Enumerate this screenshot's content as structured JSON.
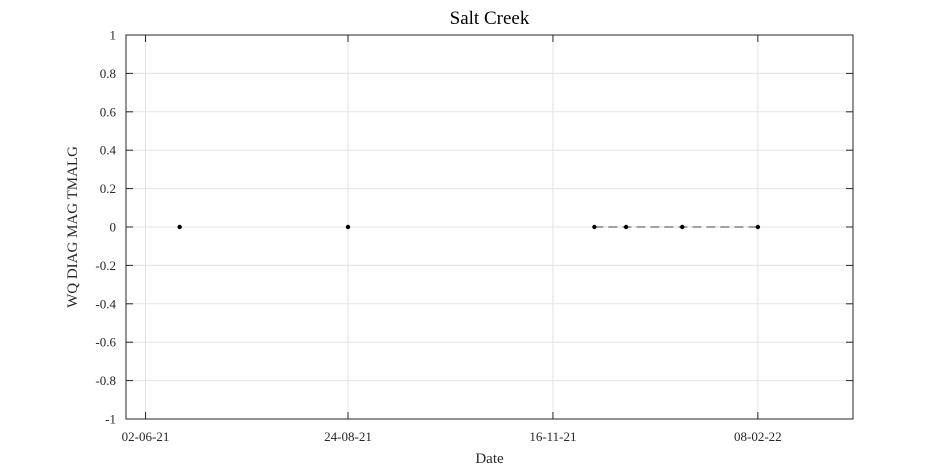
{
  "chart_data": {
    "type": "scatter",
    "title": "Salt Creek",
    "xlabel": "Date",
    "ylabel": "WQ DIAG MAG TMALG",
    "x_ticks": [
      "02-06-21",
      "24-08-21",
      "16-11-21",
      "08-02-22"
    ],
    "x_tick_dates": [
      "2021-06-02",
      "2021-08-24",
      "2021-11-16",
      "2022-02-08"
    ],
    "xlim": [
      "2021-05-25",
      "2022-03-19"
    ],
    "y_ticks": [
      "1",
      "0.8",
      "0.6",
      "0.4",
      "0.2",
      "0",
      "-0.2",
      "-0.4",
      "-0.6",
      "-0.8",
      "-1"
    ],
    "ylim": [
      -1,
      1
    ],
    "grid": true,
    "series": [
      {
        "points": [
          {
            "x": "2021-06-16",
            "y": 0
          },
          {
            "x": "2021-08-24",
            "y": 0
          },
          {
            "x": "2021-12-03",
            "y": 0
          },
          {
            "x": "2021-12-16",
            "y": 0
          },
          {
            "x": "2022-01-08",
            "y": 0
          },
          {
            "x": "2022-02-08",
            "y": 0
          }
        ],
        "dashed_segments": [
          [
            2,
            5
          ]
        ],
        "color": "#000000"
      }
    ]
  }
}
